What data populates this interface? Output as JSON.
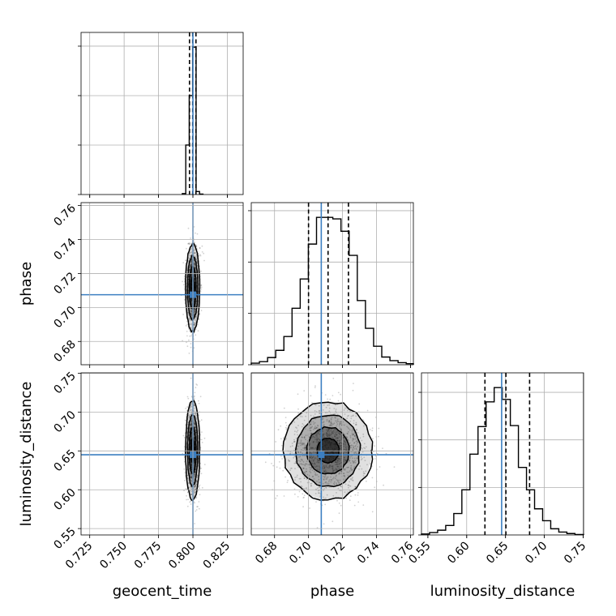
{
  "chart_data": {
    "type": "corner",
    "parameters": [
      "geocent_time",
      "phase",
      "luminosity_distance"
    ],
    "truths": {
      "geocent_time": 0.8,
      "phase": 0.7075,
      "luminosity_distance": 0.645
    },
    "quantiles": {
      "geocent_time": [
        0.7975,
        0.7998,
        0.8022
      ],
      "phase": [
        0.7,
        0.7115,
        0.7235
      ],
      "luminosity_distance": [
        0.6235,
        0.6505,
        0.681
      ]
    },
    "ranges": {
      "geocent_time": [
        0.7187,
        0.8365
      ],
      "phase": [
        0.6663,
        0.7617
      ],
      "luminosity_distance": [
        0.5418,
        0.7505
      ]
    },
    "ticks": {
      "geocent_time": [
        "0.725",
        "0.750",
        "0.775",
        "0.800",
        "0.825"
      ],
      "phase": [
        "0.68",
        "0.70",
        "0.72",
        "0.74",
        "0.76"
      ],
      "luminosity_distance": [
        "0.55",
        "0.60",
        "0.65",
        "0.70",
        "0.75"
      ]
    },
    "histograms": {
      "geocent_time": {
        "bin_edges": [
          0.7923,
          0.7948,
          0.7973,
          0.7998,
          0.8023,
          0.8048,
          0.8073
        ],
        "counts": [
          0.02,
          1.0,
          2.0,
          2.98,
          0.06,
          0.01
        ]
      },
      "phase": {
        "bin_edges": [
          0.6663,
          0.6711,
          0.6759,
          0.6807,
          0.6855,
          0.6903,
          0.6951,
          0.6999,
          0.7047,
          0.7095,
          0.7143,
          0.7191,
          0.7239,
          0.7287,
          0.7335,
          0.7383,
          0.7431,
          0.7479,
          0.7527,
          0.7575,
          0.7617
        ],
        "counts": [
          0.03,
          0.06,
          0.14,
          0.28,
          0.55,
          1.1,
          1.67,
          2.35,
          2.87,
          2.87,
          2.84,
          2.6,
          2.13,
          1.25,
          0.71,
          0.36,
          0.15,
          0.08,
          0.04,
          0.02
        ]
      },
      "luminosity_distance": {
        "bin_edges": [
          0.5418,
          0.5522,
          0.5626,
          0.573,
          0.5834,
          0.5938,
          0.6042,
          0.6146,
          0.625,
          0.6354,
          0.6458,
          0.6562,
          0.6666,
          0.677,
          0.6874,
          0.6978,
          0.7082,
          0.7186,
          0.729,
          0.7394,
          0.7505
        ],
        "counts": [
          0.02,
          0.05,
          0.1,
          0.2,
          0.45,
          0.95,
          1.7,
          2.28,
          2.8,
          3.1,
          2.85,
          2.3,
          1.42,
          0.95,
          0.55,
          0.3,
          0.13,
          0.06,
          0.03,
          0.01
        ]
      }
    },
    "grid": true
  }
}
